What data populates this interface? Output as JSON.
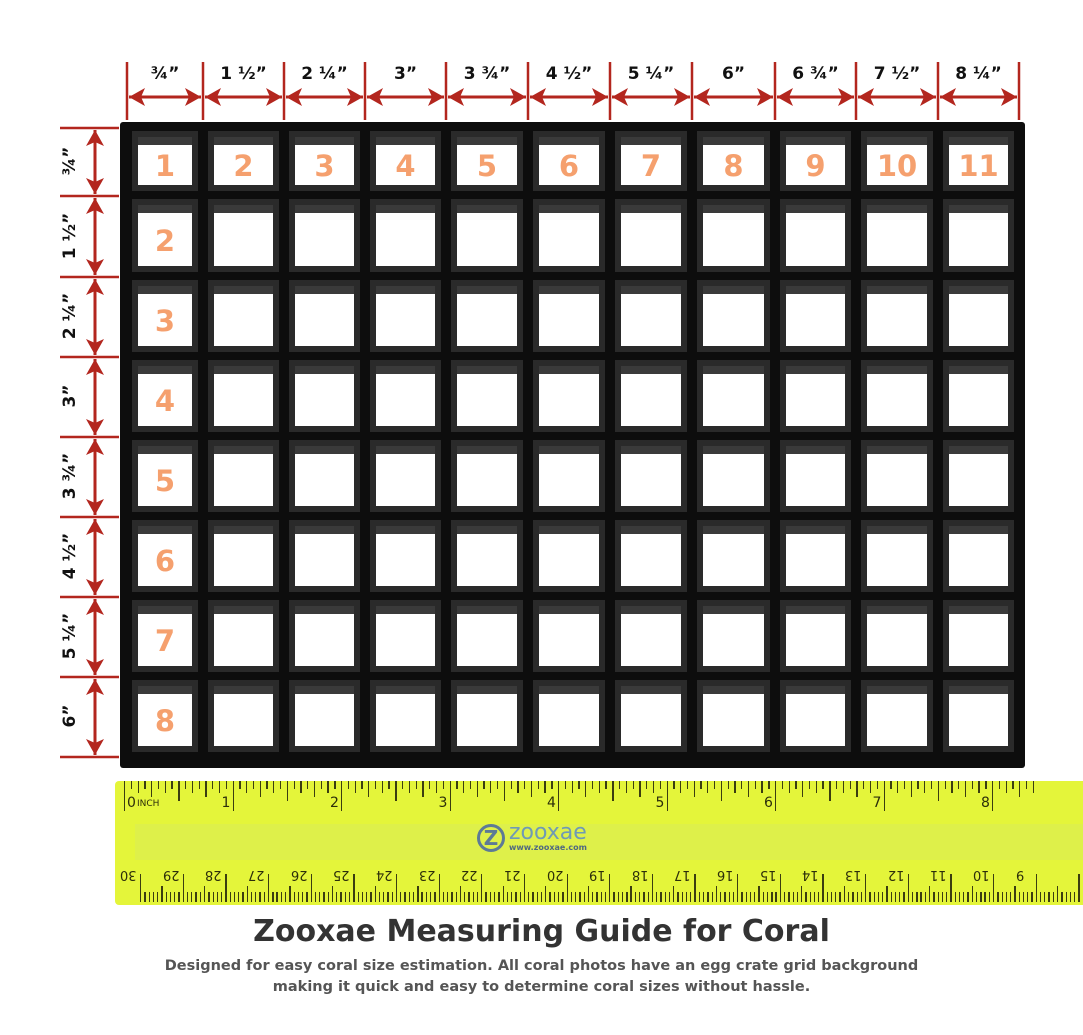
{
  "column_labels": [
    "¾”",
    "1 ½”",
    "2 ¼”",
    "3”",
    "3 ¾”",
    "4 ½”",
    "5 ¼”",
    "6”",
    "6 ¾”",
    "7 ½”",
    "8 ¼”"
  ],
  "row_labels": [
    "¾”",
    "1 ½”",
    "2 ¼”",
    "3”",
    "3 ¾”",
    "4 ½”",
    "5 ¼”",
    "6”"
  ],
  "column_numbers": [
    "1",
    "2",
    "3",
    "4",
    "5",
    "6",
    "7",
    "8",
    "9",
    "10",
    "11"
  ],
  "row_numbers": [
    "1",
    "2",
    "3",
    "4",
    "5",
    "6",
    "7",
    "8"
  ],
  "ruler": {
    "inch_unit": "INCH",
    "inch_labels": [
      "0",
      "1",
      "2",
      "3",
      "4",
      "5",
      "6",
      "7",
      "8"
    ],
    "cm_labels": [
      "30",
      "29",
      "28",
      "27",
      "26",
      "25",
      "24",
      "23",
      "22",
      "21",
      "20",
      "19",
      "18",
      "17",
      "16",
      "15",
      "14",
      "13",
      "12",
      "11",
      "10",
      "9"
    ],
    "logo_text": "zooxae",
    "logo_mark": "Z",
    "logo_url": "www.zooxae.com"
  },
  "colors": {
    "dimension_arrows": "#b3261e",
    "cell_numbers": "#f5a06e",
    "ruler": "#e4f53a",
    "grid": "#0d0d0d"
  },
  "title": "Zooxae Measuring Guide for Coral",
  "subtitle_lines": [
    "Designed for easy coral size estimation. All coral photos have an egg crate grid background",
    "making it quick and easy to determine coral sizes without hassle."
  ]
}
